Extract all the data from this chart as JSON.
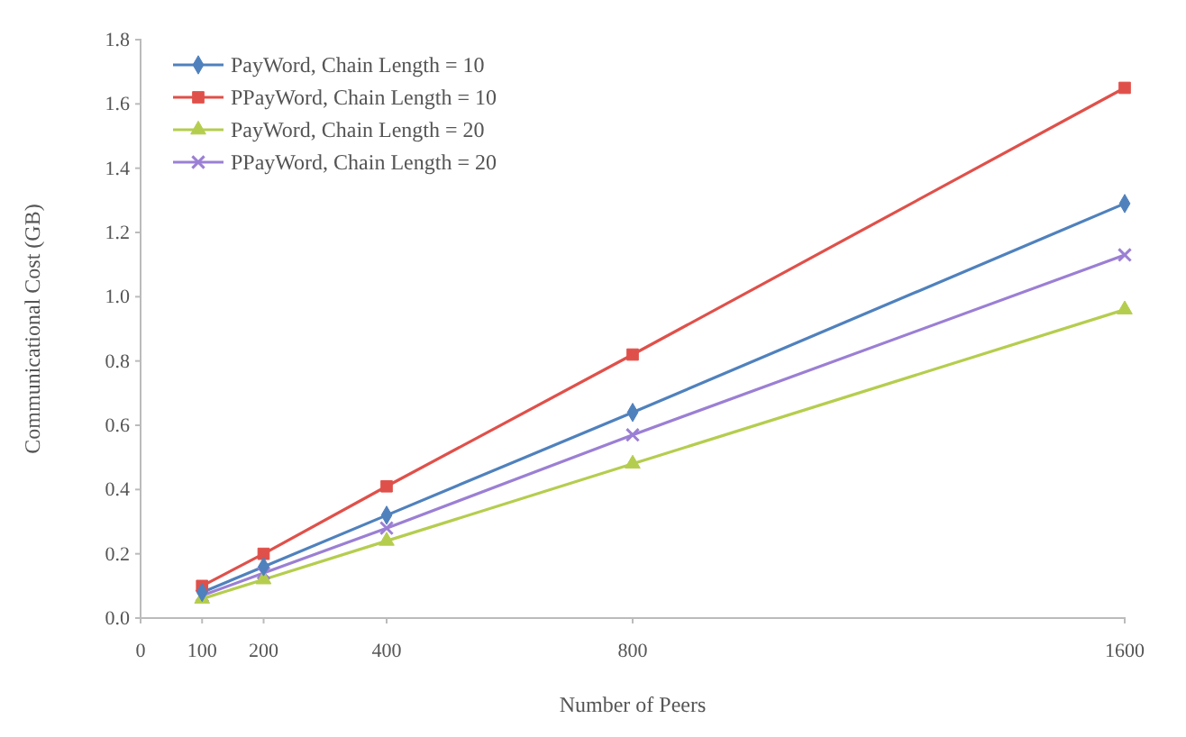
{
  "chart_data": {
    "type": "line",
    "xlabel": "Number of Peers",
    "ylabel": "Communicational Cost (GB)",
    "x": [
      100,
      200,
      400,
      800,
      1600
    ],
    "xlim": [
      0,
      1600
    ],
    "xticks": [
      0,
      100,
      200,
      400,
      800,
      1600
    ],
    "ylim": [
      0,
      1.8
    ],
    "yticks": [
      {
        "value": 0,
        "label": "0.0"
      },
      0.2,
      0.4,
      0.6,
      0.8,
      {
        "value": 1,
        "label": "1.0"
      },
      1.2,
      1.4,
      1.6,
      1.8
    ],
    "grid": false,
    "legend": "top left",
    "series": [
      {
        "name": "PayWord, Chain Length = 10",
        "color": "#4f81bd",
        "marker": "diamond",
        "values": [
          0.08,
          0.16,
          0.32,
          0.64,
          1.29
        ]
      },
      {
        "name": "PPayWord, Chain Length = 10",
        "color": "#e0504a",
        "marker": "square",
        "values": [
          0.1,
          0.2,
          0.41,
          0.82,
          1.65
        ]
      },
      {
        "name": "PayWord, Chain Length = 20",
        "color": "#b5cd4e",
        "marker": "triangle",
        "values": [
          0.06,
          0.12,
          0.24,
          0.48,
          0.96
        ]
      },
      {
        "name": "PPayWord, Chain Length = 20",
        "color": "#9b7fd4",
        "marker": "cross",
        "values": [
          0.07,
          0.14,
          0.28,
          0.57,
          1.13
        ]
      }
    ]
  }
}
